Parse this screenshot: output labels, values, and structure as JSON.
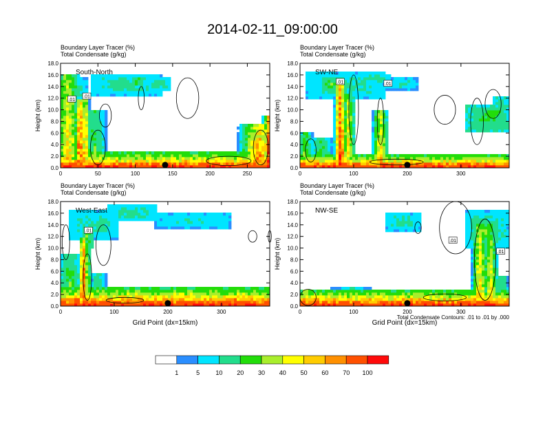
{
  "chart_data": {
    "type": "heatmap",
    "title": "2014-02-11_09:00:00",
    "panel_titles": [
      "Boundary Layer Tracer   (%)",
      "Total Condensate   (g/kg)"
    ],
    "ylabel": "Height (km)",
    "xlabel": "Grid Point (dx=15km)",
    "ylim": [
      0,
      18
    ],
    "y_ticks": [
      "0.0",
      "2.0",
      "4.0",
      "6.0",
      "8.0",
      "10.0",
      "12.0",
      "14.0",
      "16.0",
      "18.0"
    ],
    "contour_note": "Total Condensate Contours: .01 to .01 by .000",
    "contour_label": ".01",
    "panels": [
      {
        "name": "South-North",
        "xlim": [
          0,
          280
        ],
        "x_ticks": [
          "0",
          "50",
          "100",
          "150",
          "200",
          "250"
        ],
        "x_tick_values": [
          0,
          50,
          100,
          150,
          200,
          250
        ],
        "marker": {
          "x": 140,
          "y": 0.5
        },
        "plumes": [
          {
            "x": 10,
            "w": 18,
            "top": 16,
            "peak": 62
          },
          {
            "x": 26,
            "w": 7,
            "top": 12,
            "peak": 100
          },
          {
            "x": 33,
            "w": 6,
            "top": 12,
            "peak": 80
          },
          {
            "x": 45,
            "w": 18,
            "top": 10,
            "peak": 32
          },
          {
            "x": 265,
            "w": 28,
            "top": 7.5,
            "peak": 78
          },
          {
            "x": 278,
            "w": 8,
            "top": 9,
            "peak": 100
          }
        ],
        "anvils": [
          {
            "x1": 8,
            "x2": 38,
            "z1": 11.5,
            "z2": 15.5,
            "v": 12
          },
          {
            "x1": 40,
            "x2": 135,
            "z1": 12.5,
            "z2": 16.2,
            "v": 14
          },
          {
            "x1": 95,
            "x2": 110,
            "z1": 14,
            "z2": 15.8,
            "v": 28
          },
          {
            "x1": 115,
            "x2": 148,
            "z1": 13.5,
            "z2": 15.5,
            "v": 16
          }
        ],
        "bl_top": 1.6,
        "contours": [
          {
            "x": 50,
            "z": 3.5,
            "rx": 10,
            "rz": 3
          },
          {
            "x": 60,
            "z": 9,
            "rx": 8,
            "rz": 2
          },
          {
            "x": 170,
            "z": 12,
            "rx": 15,
            "rz": 3.5
          },
          {
            "x": 108,
            "z": 12,
            "rx": 4,
            "rz": 2
          },
          {
            "x": 225,
            "z": 1.2,
            "rx": 30,
            "rz": 0.8
          },
          {
            "x": 268,
            "z": 3.5,
            "rx": 10,
            "rz": 3
          }
        ],
        "labels": [
          {
            "x": 15,
            "z": 11.8
          },
          {
            "x": 35,
            "z": 12.3
          }
        ]
      },
      {
        "name": "SW-NE",
        "xlim": [
          0,
          390
        ],
        "x_ticks": [
          "0",
          "100",
          "200",
          "300"
        ],
        "x_tick_values": [
          0,
          100,
          200,
          300
        ],
        "marker": {
          "x": 200,
          "y": 0.5
        },
        "plumes": [
          {
            "x": 10,
            "w": 14,
            "top": 6,
            "peak": 40
          },
          {
            "x": 40,
            "w": 24,
            "top": 5,
            "peak": 32
          },
          {
            "x": 75,
            "w": 12,
            "top": 15,
            "peak": 100
          },
          {
            "x": 90,
            "w": 14,
            "top": 13,
            "peak": 55
          },
          {
            "x": 150,
            "w": 16,
            "top": 10,
            "peak": 62
          },
          {
            "x": 300,
            "w": 30,
            "top": 2.5,
            "peak": 32
          }
        ],
        "anvils": [
          {
            "x1": 12,
            "x2": 160,
            "z1": 12,
            "z2": 16.5,
            "v": 14
          },
          {
            "x1": 40,
            "x2": 85,
            "z1": 13,
            "z2": 15.5,
            "v": 28
          },
          {
            "x1": 115,
            "x2": 170,
            "z1": 14.5,
            "z2": 16.2,
            "v": 14
          },
          {
            "x1": 160,
            "x2": 220,
            "z1": 13.5,
            "z2": 15.5,
            "v": 12
          },
          {
            "x1": 310,
            "x2": 390,
            "z1": 6,
            "z2": 11,
            "v": 22
          },
          {
            "x1": 340,
            "x2": 380,
            "z1": 8,
            "z2": 10.5,
            "v": 30
          },
          {
            "x1": 360,
            "x2": 390,
            "z1": 10,
            "z2": 12.5,
            "v": 14
          }
        ],
        "bl_top": 1.3,
        "contours": [
          {
            "x": 20,
            "z": 3,
            "rx": 10,
            "rz": 2
          },
          {
            "x": 100,
            "z": 10,
            "rx": 9,
            "rz": 6
          },
          {
            "x": 150,
            "z": 8,
            "rx": 6,
            "rz": 4
          },
          {
            "x": 270,
            "z": 10,
            "rx": 20,
            "rz": 2.5
          },
          {
            "x": 330,
            "z": 8,
            "rx": 12,
            "rz": 4
          },
          {
            "x": 360,
            "z": 11,
            "rx": 15,
            "rz": 2.5
          },
          {
            "x": 180,
            "z": 1,
            "rx": 50,
            "rz": 0.5
          }
        ],
        "labels": [
          {
            "x": 75,
            "z": 14.8
          },
          {
            "x": 164,
            "z": 14.5
          }
        ]
      },
      {
        "name": "West-East",
        "xlim": [
          0,
          390
        ],
        "x_ticks": [
          "0",
          "100",
          "200",
          "300"
        ],
        "x_tick_values": [
          0,
          100,
          200,
          300
        ],
        "marker": {
          "x": 200,
          "y": 0.5
        },
        "plumes": [
          {
            "x": 18,
            "w": 26,
            "top": 9,
            "peak": 32
          },
          {
            "x": 42,
            "w": 8,
            "top": 12,
            "peak": 100
          },
          {
            "x": 50,
            "w": 8,
            "top": 11,
            "peak": 55
          },
          {
            "x": 70,
            "w": 18,
            "top": 5.5,
            "peak": 25
          }
        ],
        "anvils": [
          {
            "x1": 15,
            "x2": 110,
            "z1": 11.5,
            "z2": 16.5,
            "v": 14
          },
          {
            "x1": 40,
            "x2": 60,
            "z1": 10,
            "z2": 14,
            "v": 28
          },
          {
            "x1": 85,
            "x2": 180,
            "z1": 14.5,
            "z2": 17.5,
            "v": 14
          },
          {
            "x1": 175,
            "x2": 320,
            "z1": 13.5,
            "z2": 16,
            "v": 12
          }
        ],
        "bl_top": 2.2,
        "contours": [
          {
            "x": 10,
            "z": 11,
            "rx": 7,
            "rz": 3
          },
          {
            "x": 80,
            "z": 10.5,
            "rx": 14,
            "rz": 3.5
          },
          {
            "x": 358,
            "z": 12,
            "rx": 8,
            "rz": 1
          },
          {
            "x": 390,
            "z": 12,
            "rx": 3,
            "rz": 1
          },
          {
            "x": 50,
            "z": 5,
            "rx": 8,
            "rz": 4
          },
          {
            "x": 120,
            "z": 1,
            "rx": 35,
            "rz": 0.5
          }
        ],
        "labels": [
          {
            "x": 52,
            "z": 13
          }
        ]
      },
      {
        "name": "NW-SE",
        "xlim": [
          0,
          390
        ],
        "x_ticks": [
          "0",
          "100",
          "200",
          "300"
        ],
        "x_tick_values": [
          0,
          100,
          200,
          300
        ],
        "marker": {
          "x": 200,
          "y": 0.5
        },
        "plumes": [
          {
            "x": 12,
            "w": 24,
            "top": 2.8,
            "peak": 62
          },
          {
            "x": 95,
            "w": 40,
            "top": 3.2,
            "peak": 20
          },
          {
            "x": 335,
            "w": 16,
            "top": 14,
            "peak": 62
          },
          {
            "x": 355,
            "w": 16,
            "top": 12,
            "peak": 55
          },
          {
            "x": 375,
            "w": 16,
            "top": 5,
            "peak": 30
          }
        ],
        "anvils": [
          {
            "x1": 160,
            "x2": 225,
            "z1": 13,
            "z2": 16,
            "v": 14
          },
          {
            "x1": 310,
            "x2": 390,
            "z1": 10,
            "z2": 16.5,
            "v": 14
          },
          {
            "x1": 320,
            "x2": 370,
            "z1": 11,
            "z2": 15,
            "v": 28
          },
          {
            "x1": 330,
            "x2": 355,
            "z1": 12,
            "z2": 14,
            "v": 42
          },
          {
            "x1": 365,
            "x2": 390,
            "z1": 11.5,
            "z2": 13.5,
            "v": 14
          }
        ],
        "bl_top": 1.7,
        "contours": [
          {
            "x": 15,
            "z": 1.5,
            "rx": 15,
            "rz": 1.4
          },
          {
            "x": 220,
            "z": 13.5,
            "rx": 6,
            "rz": 1
          },
          {
            "x": 290,
            "z": 13.5,
            "rx": 30,
            "rz": 4.5
          },
          {
            "x": 345,
            "z": 8,
            "rx": 20,
            "rz": 7
          },
          {
            "x": 270,
            "z": 1.5,
            "rx": 40,
            "rz": 0.6
          }
        ],
        "labels": [
          {
            "x": 285,
            "z": 11.3
          },
          {
            "x": 374,
            "z": 9.4
          }
        ]
      }
    ],
    "colorbar": {
      "levels": [
        "1",
        "5",
        "10",
        "20",
        "30",
        "40",
        "50",
        "60",
        "70",
        "100"
      ],
      "level_values": [
        1,
        5,
        10,
        20,
        30,
        40,
        50,
        60,
        70,
        100
      ],
      "colors": [
        "#ffffff",
        "#2a8eff",
        "#00e5ff",
        "#22dd8c",
        "#22dd0a",
        "#a9ee2c",
        "#ffff00",
        "#ffcc00",
        "#ff9000",
        "#ff5000",
        "#ff0a0a"
      ]
    }
  }
}
